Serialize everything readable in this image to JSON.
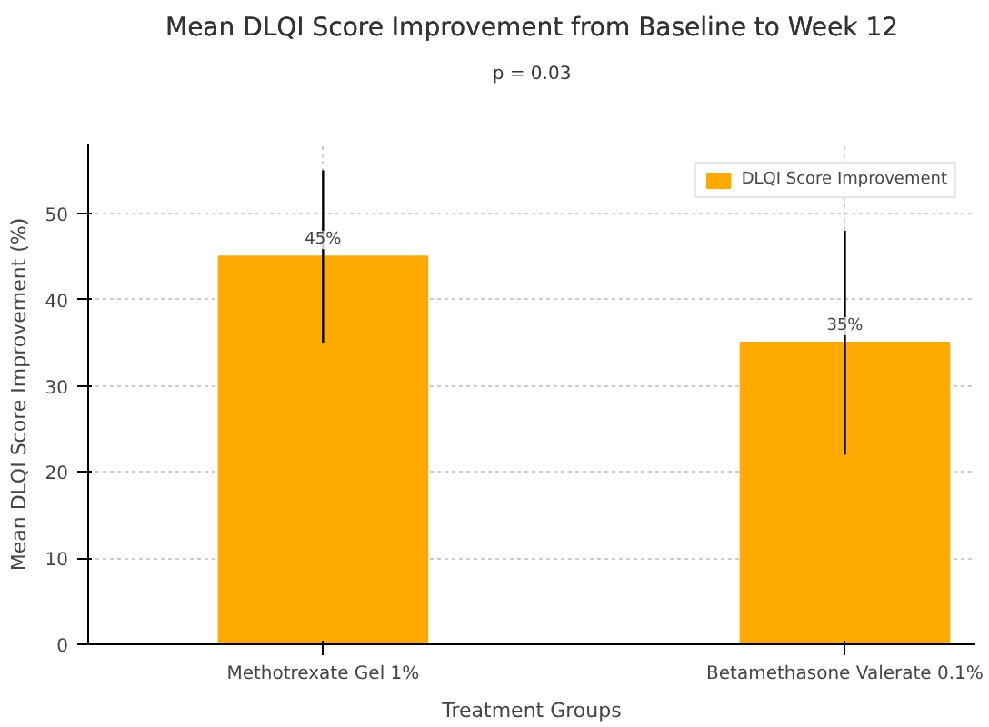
{
  "chart_data": {
    "type": "bar",
    "title": "Mean DLQI Score Improvement from Baseline to Week 12",
    "annotations": [
      "p = 0.03"
    ],
    "xlabel": "Treatment Groups",
    "ylabel": "Mean DLQI Score Improvement (%)",
    "categories": [
      "Methotrexate Gel 1%",
      "Betamethasone Valerate 0.1%"
    ],
    "series": [
      {
        "name": "DLQI Score Improvement",
        "color": "#ffaa00",
        "values": [
          45,
          35
        ],
        "errors": [
          10,
          13
        ],
        "value_labels": [
          "45%",
          "35%"
        ]
      }
    ],
    "ylim": [
      0,
      58
    ],
    "yticks": [
      0,
      10,
      20,
      30,
      40,
      50
    ],
    "grid": true,
    "legend": "top right"
  }
}
